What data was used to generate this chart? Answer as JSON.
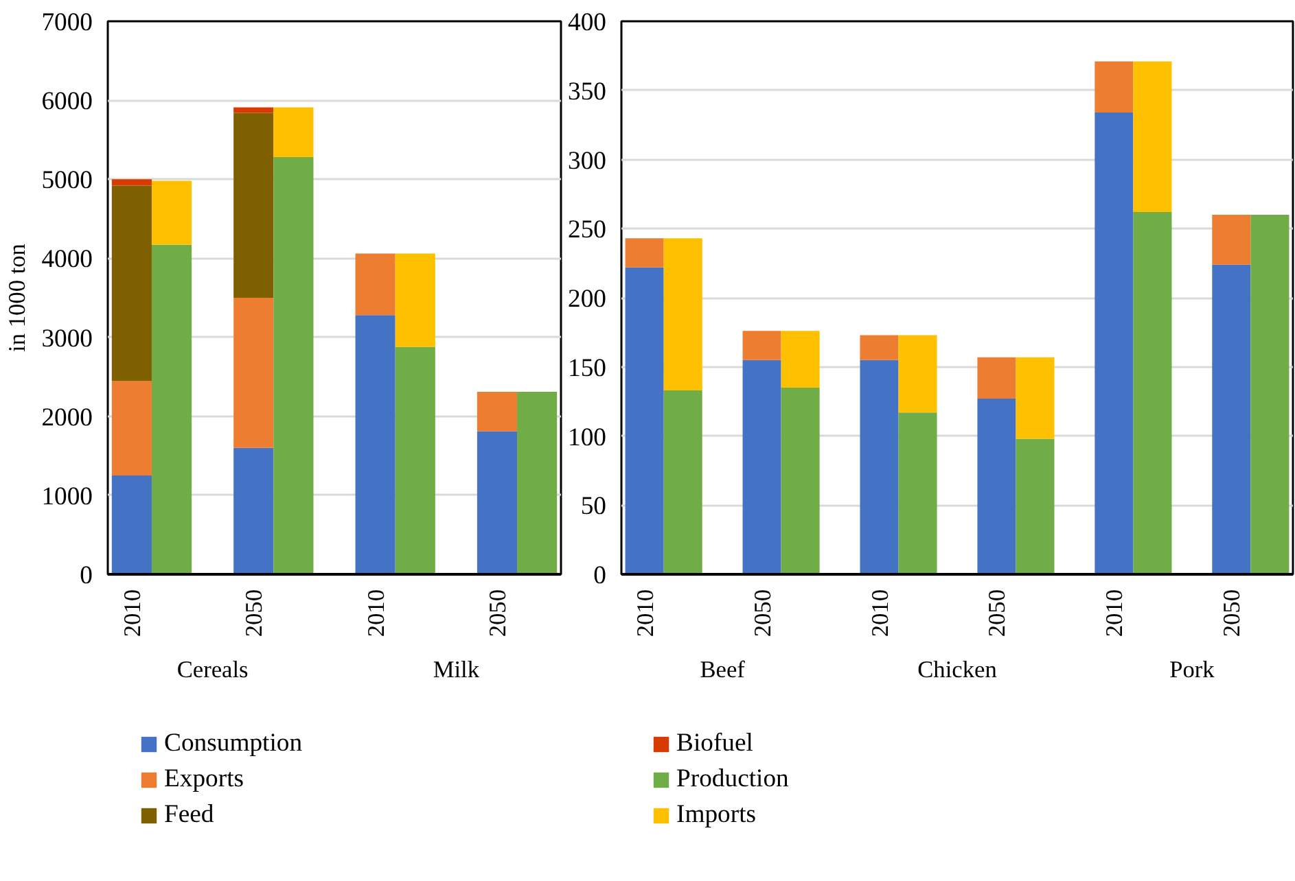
{
  "chart_data": [
    {
      "type": "bar",
      "stacked": true,
      "ylabel": "in 1000 ton",
      "ylim": [
        0,
        7000
      ],
      "yticks": [
        0,
        1000,
        2000,
        3000,
        4000,
        5000,
        6000,
        7000
      ],
      "grid": "y",
      "legend": "bottom",
      "categories": [
        "2010",
        null,
        "2050",
        null,
        "2010",
        null,
        "2050",
        null
      ],
      "annotations": [
        "Cereals",
        "Milk"
      ],
      "series": [
        {
          "name": "Consumption",
          "color": "#4472c4",
          "values": [
            1250,
            null,
            1600,
            null,
            3280,
            null,
            1810,
            null
          ]
        },
        {
          "name": "Exports",
          "color": "#ed7d31",
          "values": [
            1200,
            null,
            1900,
            null,
            780,
            null,
            500,
            null
          ]
        },
        {
          "name": "Feed",
          "color": "#7f6000",
          "values": [
            2470,
            null,
            2340,
            null,
            null,
            null,
            null,
            null
          ]
        },
        {
          "name": "Biofuel",
          "color": "#d83b01",
          "values": [
            80,
            null,
            70,
            null,
            null,
            null,
            null,
            null
          ]
        },
        {
          "name": "Production",
          "color": "#70ad47",
          "values": [
            null,
            4170,
            null,
            5280,
            null,
            2880,
            null,
            2310
          ]
        },
        {
          "name": "Imports",
          "color": "#ffc000",
          "values": [
            null,
            810,
            null,
            630,
            null,
            1180,
            null,
            null
          ]
        }
      ]
    },
    {
      "type": "bar",
      "stacked": true,
      "ylim": [
        0,
        400
      ],
      "yticks": [
        0,
        50,
        100,
        150,
        200,
        250,
        300,
        350,
        400
      ],
      "grid": "y",
      "categories": [
        "2010",
        null,
        "2050",
        null,
        "2010",
        null,
        "2050",
        null,
        "2010",
        null,
        "2050",
        null
      ],
      "annotations": [
        "Beef",
        "Chicken",
        "Pork"
      ],
      "series": [
        {
          "color": "#4472c4",
          "values": [
            222,
            null,
            155,
            null,
            155,
            null,
            127,
            null,
            334,
            null,
            224,
            null
          ]
        },
        {
          "color": "#ed7d31",
          "values": [
            21,
            null,
            21,
            null,
            18,
            null,
            30,
            null,
            37,
            null,
            36,
            null
          ]
        },
        {
          "color": "#70ad47",
          "values": [
            null,
            133,
            null,
            135,
            null,
            117,
            null,
            98,
            null,
            262,
            null,
            260
          ]
        },
        {
          "color": "#ffc000",
          "values": [
            null,
            110,
            null,
            41,
            null,
            56,
            null,
            59,
            null,
            109,
            null,
            null
          ]
        }
      ]
    }
  ]
}
